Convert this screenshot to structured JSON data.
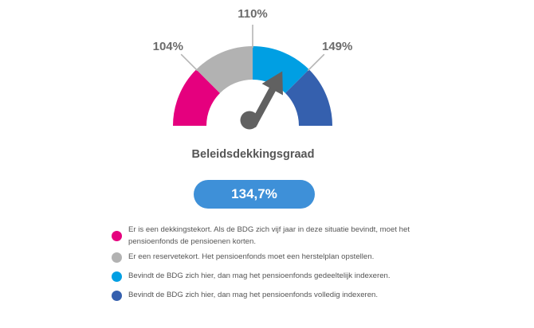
{
  "chart_data": {
    "type": "gauge",
    "title": "Beleidsdekkingsgraad",
    "value": 134.7,
    "value_label": "134,7%",
    "thresholds": [
      {
        "value": 104,
        "label": "104%"
      },
      {
        "value": 110,
        "label": "110%"
      },
      {
        "value": 149,
        "label": "149%"
      }
    ],
    "segments": [
      {
        "color": "#e5007e",
        "description": "Er is een dekkingstekort. Als de BDG zich vijf jaar in deze situatie bevindt, moet het pensioenfonds de pensioenen korten."
      },
      {
        "color": "#b2b2b2",
        "description": "Er een reservetekort. Het pensioenfonds moet een herstelplan opstellen."
      },
      {
        "color": "#009fe3",
        "description": "Bevindt de BDG zich hier, dan mag het pensioenfonds gedeeltelijk indexeren."
      },
      {
        "color": "#3560ae",
        "description": "Bevindt de BDG zich hier, dan mag het pensioenfonds volledig indexeren."
      }
    ]
  },
  "colors": {
    "needle": "#616161",
    "pill": "#3e90d8"
  }
}
